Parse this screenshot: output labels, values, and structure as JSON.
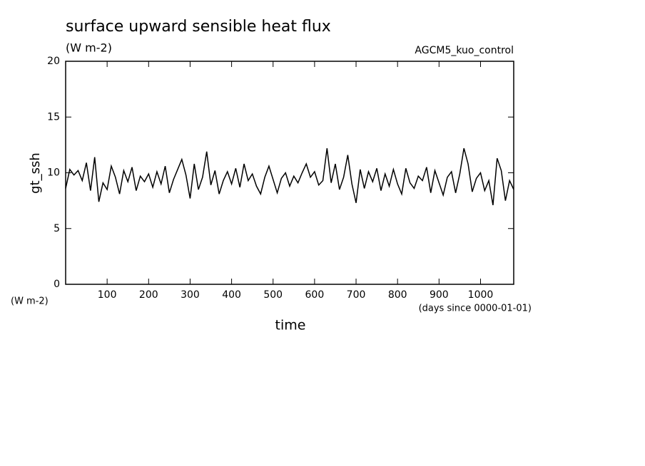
{
  "chart_data": {
    "type": "line",
    "title": "surface upward sensible heat flux",
    "units": "(W m-2)",
    "run_label": "AGCM5_kuo_control",
    "y_label": "gt_ssh",
    "y_units": "(W m-2)",
    "x_label": "time",
    "x_units": "(days since 0000-01-01)",
    "x": [
      0,
      10,
      20,
      30,
      40,
      50,
      60,
      70,
      80,
      90,
      100,
      110,
      120,
      130,
      140,
      150,
      160,
      170,
      180,
      190,
      200,
      210,
      220,
      230,
      240,
      250,
      260,
      270,
      280,
      290,
      300,
      310,
      320,
      330,
      340,
      350,
      360,
      370,
      380,
      390,
      400,
      410,
      420,
      430,
      440,
      450,
      460,
      470,
      480,
      490,
      500,
      510,
      520,
      530,
      540,
      550,
      560,
      570,
      580,
      590,
      600,
      610,
      620,
      630,
      640,
      650,
      660,
      670,
      680,
      690,
      700,
      710,
      720,
      730,
      740,
      750,
      760,
      770,
      780,
      790,
      800,
      810,
      820,
      830,
      840,
      850,
      860,
      870,
      880,
      890,
      900,
      910,
      920,
      930,
      940,
      950,
      960,
      970,
      980,
      990,
      1000,
      1010,
      1020,
      1030,
      1040,
      1050,
      1060,
      1070,
      1080
    ],
    "series": [
      {
        "name": "gt_ssh",
        "color": "#000000",
        "values": [
          8.6,
          10.3,
          9.8,
          10.2,
          9.3,
          10.9,
          8.4,
          11.4,
          7.4,
          9.1,
          8.5,
          10.6,
          9.6,
          8.1,
          10.2,
          9.2,
          10.5,
          8.4,
          9.7,
          9.2,
          9.9,
          8.7,
          10.1,
          9.0,
          10.6,
          8.2,
          9.4,
          10.3,
          11.2,
          9.8,
          7.7,
          10.8,
          8.5,
          9.6,
          11.9,
          8.9,
          10.2,
          8.1,
          9.3,
          10.1,
          9.0,
          10.4,
          8.7,
          10.8,
          9.3,
          9.9,
          8.8,
          8.1,
          9.6,
          10.6,
          9.4,
          8.2,
          9.5,
          10.0,
          8.8,
          9.7,
          9.1,
          10.0,
          10.8,
          9.6,
          10.1,
          8.9,
          9.3,
          12.2,
          9.1,
          10.8,
          8.5,
          9.6,
          11.6,
          9.0,
          7.3,
          10.3,
          8.6,
          10.1,
          9.2,
          10.4,
          8.4,
          9.9,
          8.8,
          10.3,
          9.0,
          8.1,
          10.4,
          9.1,
          8.6,
          9.7,
          9.3,
          10.5,
          8.2,
          10.2,
          9.1,
          8.0,
          9.6,
          10.1,
          8.2,
          9.9,
          12.2,
          10.8,
          8.3,
          9.5,
          10.0,
          8.4,
          9.3,
          7.1,
          11.3,
          10.2,
          7.5,
          9.3,
          8.5
        ]
      }
    ],
    "xlim": [
      0,
      1080
    ],
    "ylim": [
      0,
      20
    ],
    "xticks": [
      100,
      200,
      300,
      400,
      500,
      600,
      700,
      800,
      900,
      1000
    ],
    "yticks": [
      0,
      5,
      10,
      15,
      20
    ]
  }
}
